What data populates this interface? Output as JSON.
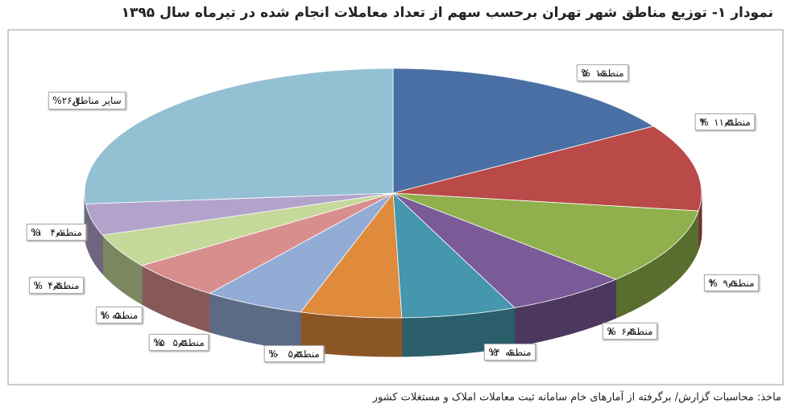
{
  "chart_data": {
    "type": "pie",
    "title": "نمودار ۱- توزیع مناطق شهر تهران برحسب سهم از تعداد معاملات انجام شده در تیرماه سال ۱۳۹۵",
    "categories": [
      "منطقه۵",
      "منطقه۴",
      "منطقه۲",
      "منطقه۸",
      "منطقه۱۴",
      "منطقه۱۰",
      "منطقه۱۵",
      "منطقه۷",
      "منطقه۱",
      "منطقه۱۱",
      "سایر مناطق"
    ],
    "values": [
      16,
      11.3,
      9.9,
      6.4,
      6,
      5.3,
      5.3,
      5,
      4.4,
      4.1,
      26.4
    ],
    "value_labels": [
      "۱۶%",
      "۱۱٫۳%",
      "۹٫۹%",
      "۶٫۴%",
      "۶%",
      "۵٫۳%",
      "۵٫۳%",
      "۵%",
      "۴٫۴%",
      "۴٫۱%",
      "۲۶٫۴%"
    ],
    "colors": [
      "#4a6fa5",
      "#b94a48",
      "#8fb04c",
      "#7a5b98",
      "#4497ad",
      "#e08a3c",
      "#93acd6",
      "#d98e8e",
      "#c5d99a",
      "#b3a3cc",
      "#93c0d3"
    ],
    "source": "ماخذ: محاسبات گزارش/ برگرفته از آمارهای خام سامانه ثبت معاملات املاک و مستغلات کشور"
  }
}
